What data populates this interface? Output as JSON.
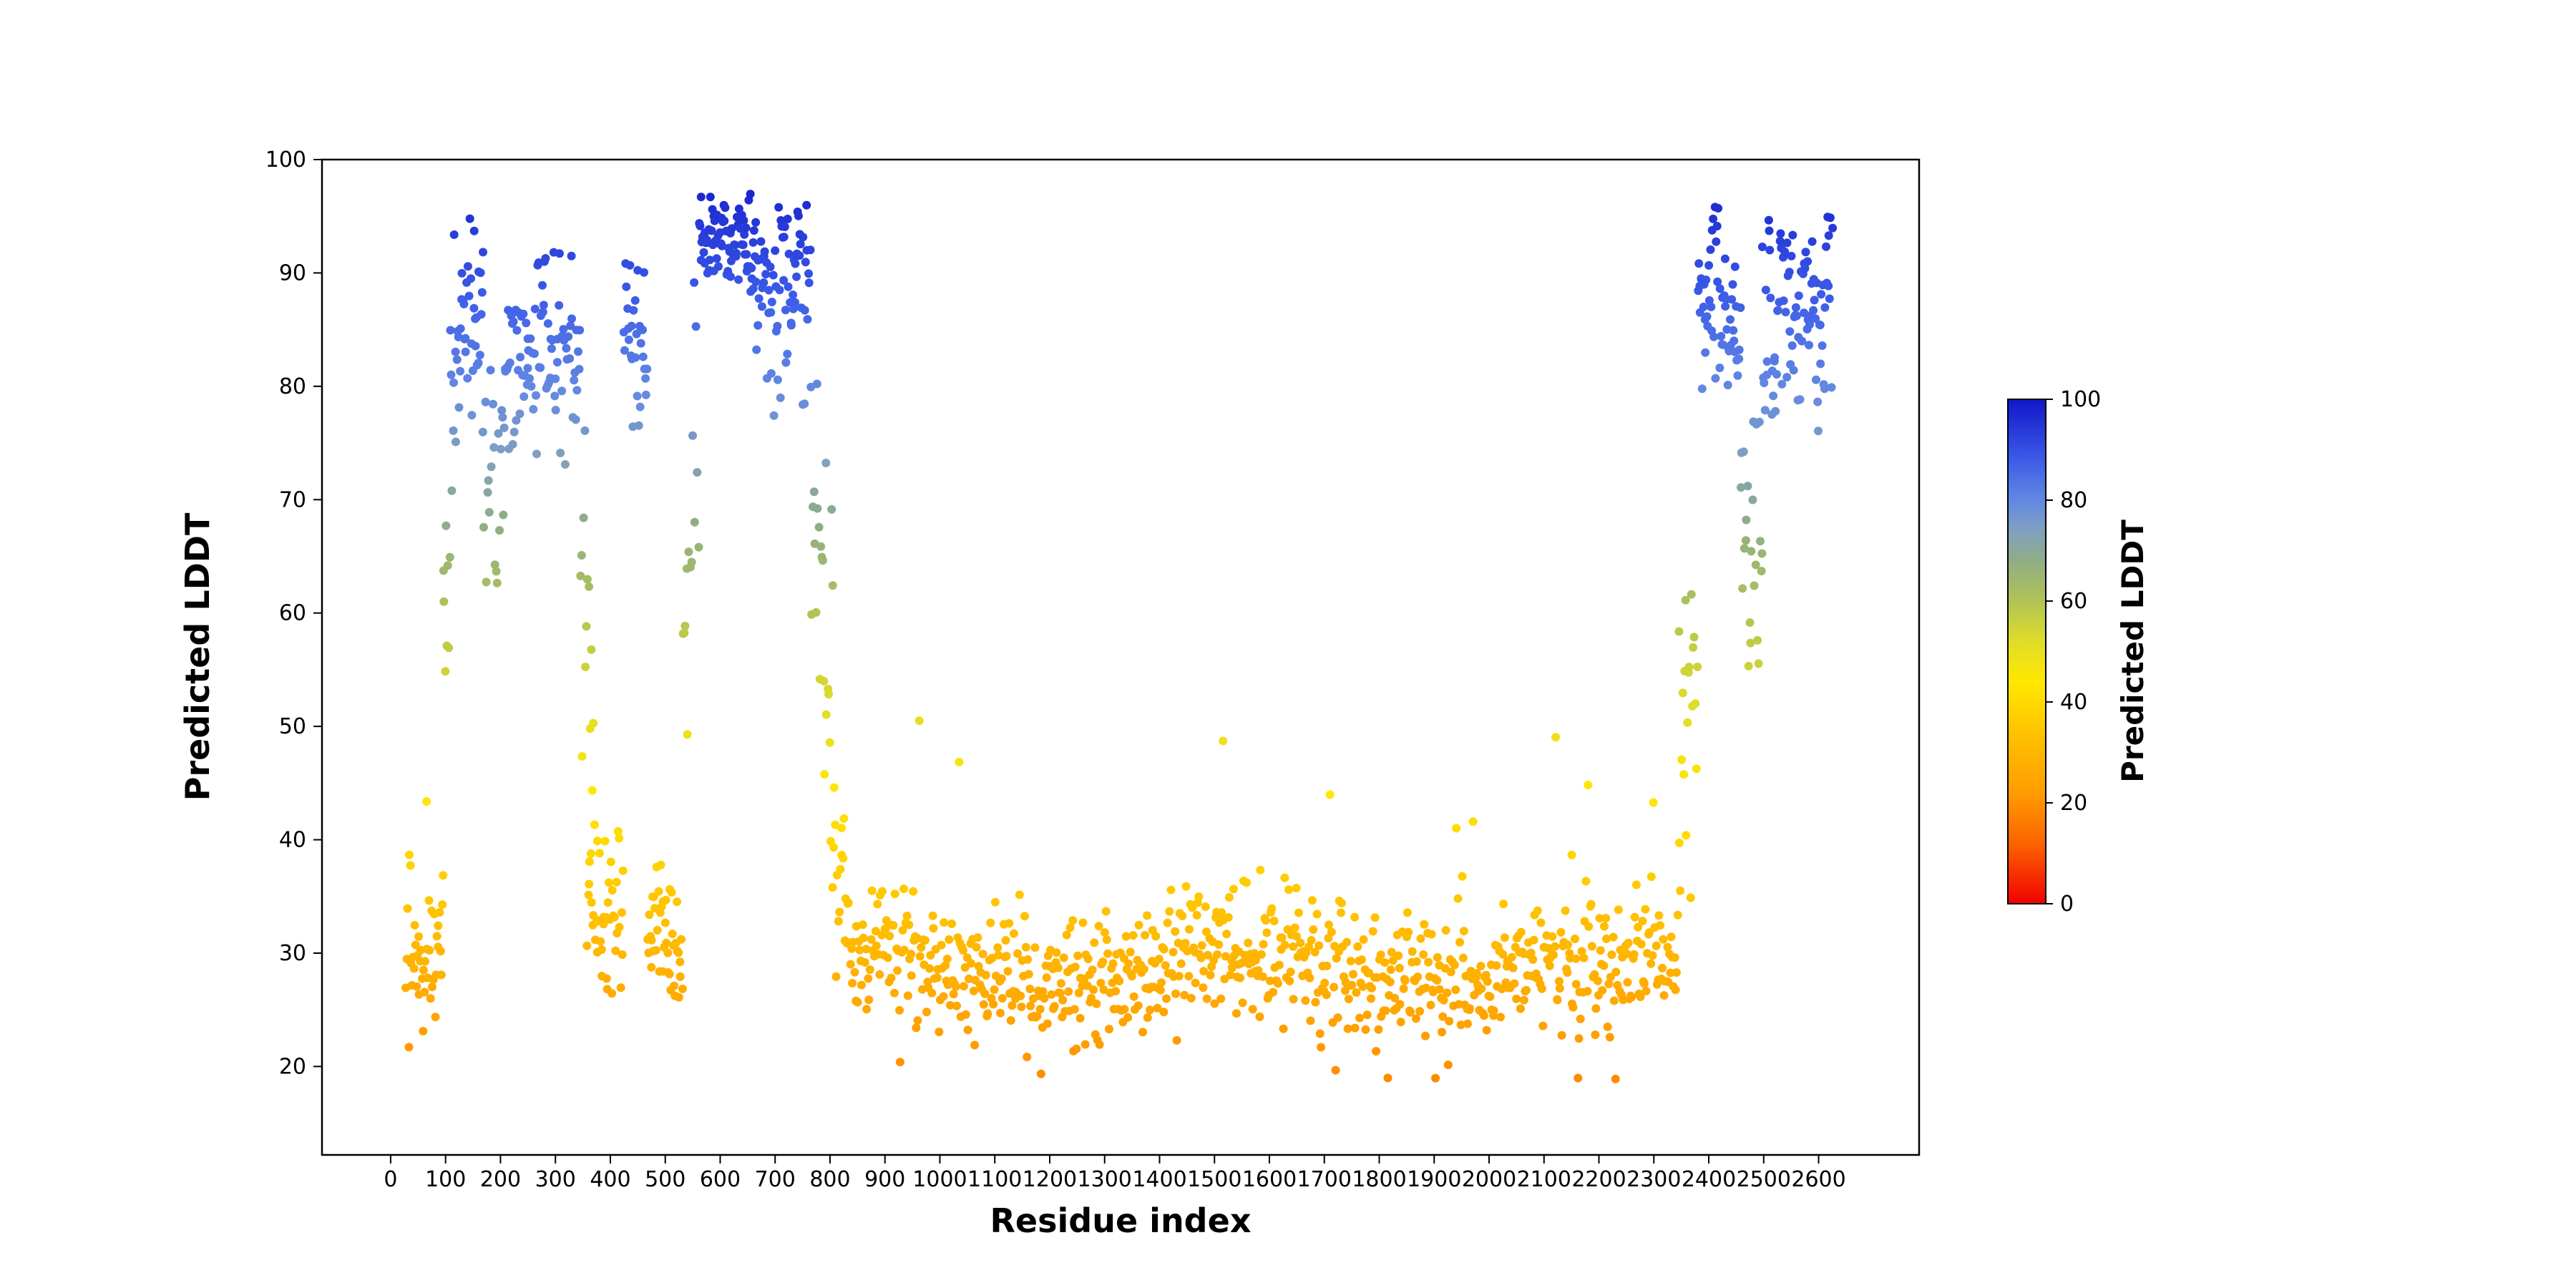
{
  "figure": {
    "background": "#ffffff"
  },
  "chart_data": {
    "type": "scatter",
    "title": "",
    "xlabel": "Residue index",
    "ylabel": "Predicted LDDT",
    "legend": "none",
    "grid": false,
    "xlim": [
      -125,
      2783
    ],
    "ylim": [
      12.2,
      100
    ],
    "x_ticks": [
      0,
      100,
      200,
      300,
      400,
      500,
      600,
      700,
      800,
      900,
      1000,
      1100,
      1200,
      1300,
      1400,
      1500,
      1600,
      1700,
      1800,
      1900,
      2000,
      2100,
      2200,
      2300,
      2400,
      2500,
      2600
    ],
    "y_ticks": [
      20,
      30,
      40,
      50,
      60,
      70,
      80,
      90,
      100
    ],
    "colorbar": {
      "label": "Predicted LDDT",
      "ticks": [
        0,
        20,
        40,
        60,
        80,
        100
      ],
      "min": 0,
      "max": 100
    },
    "colormap_stops": [
      [
        0,
        "#f20000"
      ],
      [
        12,
        "#fc6400"
      ],
      [
        22,
        "#ff9c00"
      ],
      [
        33,
        "#ffc000"
      ],
      [
        44,
        "#ffe800"
      ],
      [
        52,
        "#e0dc28"
      ],
      [
        60,
        "#b0c455"
      ],
      [
        68,
        "#8fad85"
      ],
      [
        74,
        "#7fa0c0"
      ],
      [
        80,
        "#6288e2"
      ],
      [
        88,
        "#3c5ce8"
      ],
      [
        100,
        "#1016c8"
      ]
    ],
    "point_radius": 6,
    "seed": 42,
    "segments": [
      {
        "x0": 28,
        "x1": 96,
        "step": 1.6,
        "y0": 30,
        "y1": 30,
        "sp": 3.2,
        "min": 22.5,
        "max": 44,
        "orate": 0.05,
        "oamp": 10
      },
      {
        "x0": 96,
        "x1": 116,
        "step": 1.6,
        "y0": 62,
        "y1": 78,
        "sp": 8,
        "min": 54,
        "max": 94,
        "orate": 0,
        "oamp": 0
      },
      {
        "x0": 116,
        "x1": 168,
        "step": 1.4,
        "y0": 85,
        "y1": 85,
        "sp": 4.5,
        "min": 66,
        "max": 95,
        "orate": 0,
        "oamp": 0
      },
      {
        "x0": 168,
        "x1": 200,
        "step": 2,
        "y0": 76,
        "y1": 70,
        "sp": 7,
        "min": 50,
        "max": 89,
        "orate": 0,
        "oamp": 0
      },
      {
        "x0": 200,
        "x1": 250,
        "step": 1.6,
        "y0": 80,
        "y1": 84,
        "sp": 5,
        "min": 56,
        "max": 92,
        "orate": 0,
        "oamp": 0
      },
      {
        "x0": 250,
        "x1": 345,
        "step": 1.6,
        "y0": 84,
        "y1": 84,
        "sp": 4.5,
        "min": 62,
        "max": 92,
        "orate": 0,
        "oamp": 0
      },
      {
        "x0": 345,
        "x1": 370,
        "step": 2,
        "y0": 70,
        "y1": 50,
        "sp": 9,
        "min": 40,
        "max": 85,
        "orate": 0,
        "oamp": 0
      },
      {
        "x0": 358,
        "x1": 425,
        "step": 1.6,
        "y0": 34,
        "y1": 32,
        "sp": 5,
        "min": 26,
        "max": 53,
        "orate": 0,
        "oamp": 0
      },
      {
        "x0": 425,
        "x1": 468,
        "step": 1.5,
        "y0": 84,
        "y1": 84,
        "sp": 4,
        "min": 69,
        "max": 91,
        "orate": 0,
        "oamp": 0
      },
      {
        "x0": 468,
        "x1": 532,
        "step": 1.5,
        "y0": 31,
        "y1": 31,
        "sp": 3,
        "min": 26,
        "max": 44,
        "orate": 0.04,
        "oamp": 8
      },
      {
        "x0": 532,
        "x1": 562,
        "step": 2.2,
        "y0": 55,
        "y1": 80,
        "sp": 9,
        "min": 38,
        "max": 90,
        "orate": 0,
        "oamp": 0
      },
      {
        "x0": 562,
        "x1": 665,
        "step": 1.3,
        "y0": 92.5,
        "y1": 92.5,
        "sp": 2.3,
        "min": 83,
        "max": 97,
        "orate": 0,
        "oamp": 0
      },
      {
        "x0": 665,
        "x1": 705,
        "step": 1.5,
        "y0": 89,
        "y1": 87,
        "sp": 4,
        "min": 74,
        "max": 96,
        "orate": 0,
        "oamp": 0
      },
      {
        "x0": 705,
        "x1": 765,
        "step": 1.4,
        "y0": 90,
        "y1": 88,
        "sp": 4,
        "min": 60,
        "max": 96,
        "orate": 0,
        "oamp": 0
      },
      {
        "x0": 765,
        "x1": 805,
        "step": 1.8,
        "y0": 75,
        "y1": 50,
        "sp": 9,
        "min": 37,
        "max": 93,
        "orate": 0,
        "oamp": 0
      },
      {
        "x0": 805,
        "x1": 835,
        "step": 1.7,
        "y0": 37,
        "y1": 33,
        "sp": 4,
        "min": 23,
        "max": 48,
        "orate": 0,
        "oamp": 0
      },
      {
        "x0": 835,
        "x1": 2345,
        "step": 1.9,
        "y0": 28.5,
        "y1": 28.5,
        "sp": 2.9,
        "min": 17.3,
        "max": 40,
        "orate": 0.018,
        "oamp": 16,
        "wave": 1.2
      },
      {
        "x0": 2345,
        "x1": 2380,
        "step": 1.8,
        "y0": 42,
        "y1": 55,
        "sp": 7,
        "min": 30,
        "max": 80,
        "orate": 0,
        "oamp": 0
      },
      {
        "x0": 2380,
        "x1": 2458,
        "step": 1.4,
        "y0": 88,
        "y1": 87,
        "sp": 4.5,
        "min": 70,
        "max": 96,
        "orate": 0,
        "oamp": 0
      },
      {
        "x0": 2458,
        "x1": 2498,
        "step": 1.8,
        "y0": 64,
        "y1": 62,
        "sp": 7,
        "min": 47,
        "max": 80,
        "orate": 0,
        "oamp": 0
      },
      {
        "x0": 2498,
        "x1": 2552,
        "step": 1.5,
        "y0": 86,
        "y1": 88,
        "sp": 5,
        "min": 63,
        "max": 95,
        "orate": 0,
        "oamp": 0
      },
      {
        "x0": 2552,
        "x1": 2625,
        "step": 1.4,
        "y0": 88,
        "y1": 86,
        "sp": 5,
        "min": 57,
        "max": 95,
        "orate": 0,
        "oamp": 0
      }
    ]
  }
}
